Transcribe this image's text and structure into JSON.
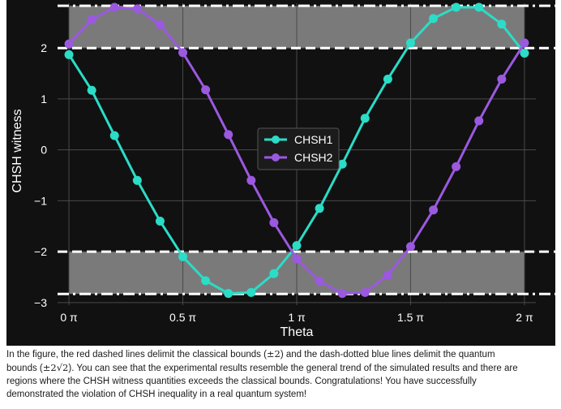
{
  "chart_data": {
    "type": "line",
    "xlabel": "Theta",
    "ylabel": "CHSH witness",
    "xlim": [
      -0.05,
      2.05
    ],
    "ylim": [
      -3.05,
      2.88
    ],
    "x_ticks": [
      0,
      0.5,
      1,
      1.5,
      2
    ],
    "x_tick_labels": [
      "0 π",
      "0.5 π",
      "1 π",
      "1.5 π",
      "2 π"
    ],
    "y_ticks": [
      -3,
      -2,
      -1,
      0,
      1,
      2
    ],
    "y_tick_labels": [
      "−3",
      "−2",
      "−1",
      "0",
      "1",
      "2"
    ],
    "grid": true,
    "legend_position": "center",
    "classical_bounds": [
      -2,
      2
    ],
    "quantum_bounds": [
      -2.83,
      2.83
    ],
    "x": [
      0,
      0.1,
      0.2,
      0.3,
      0.4,
      0.5,
      0.6,
      0.7,
      0.8,
      0.9,
      1.0,
      1.1,
      1.2,
      1.3,
      1.4,
      1.5,
      1.6,
      1.7,
      1.8,
      1.9,
      2.0
    ],
    "series": [
      {
        "name": "CHSH1",
        "color": "#2bdcc7",
        "values": [
          1.87,
          1.17,
          0.28,
          -0.6,
          -1.4,
          -2.1,
          -2.57,
          -2.82,
          -2.8,
          -2.43,
          -1.88,
          -1.15,
          -0.28,
          0.62,
          1.39,
          2.1,
          2.58,
          2.8,
          2.8,
          2.47,
          1.9
        ]
      },
      {
        "name": "CHSH2",
        "color": "#9b59e0",
        "values": [
          2.08,
          2.56,
          2.8,
          2.77,
          2.46,
          1.91,
          1.18,
          0.3,
          -0.6,
          -1.43,
          -2.14,
          -2.58,
          -2.82,
          -2.8,
          -2.46,
          -1.9,
          -1.18,
          -0.33,
          0.57,
          1.39,
          2.1
        ]
      }
    ]
  },
  "caption": {
    "line1_a": "In the figure, the red dashed lines delimit the classical bounds (",
    "pm2": "±2",
    "line1_b": ") and the dash-dotted blue lines delimit the quantum",
    "line2_a": "bounds (",
    "pm2sqrt2": "±2√2",
    "line2_b": "). You can see that the experimental results resemble the general trend of the simulated results and there are",
    "line3": "regions where the CHSH witness quantities exceeds the classical bounds. Congratulations! You have successfully",
    "line4": "demonstrated the violation of CHSH inequality in a real quantum system!"
  }
}
